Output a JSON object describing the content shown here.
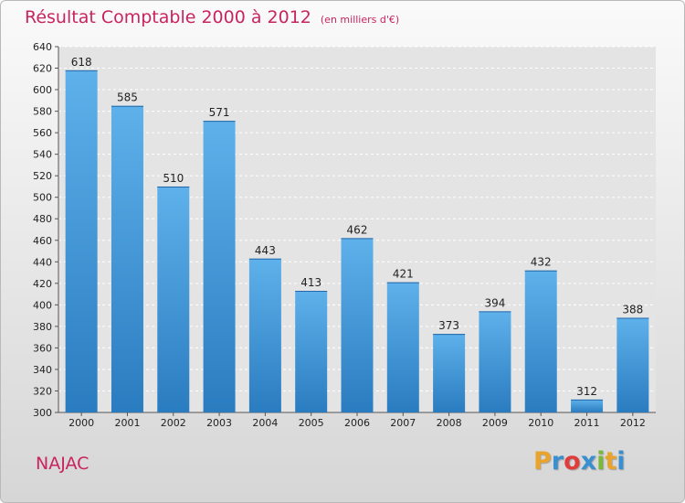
{
  "title": "Résultat Comptable 2000 à 2012",
  "subtitle": "(en milliers d'€)",
  "place": "NAJAC",
  "logo": {
    "letters": [
      "P",
      "r",
      "o",
      "x",
      "i",
      "t",
      "i"
    ],
    "colors": [
      "#e8a42c",
      "#3a8fd0",
      "#e03c3c",
      "#3a8fd0",
      "#7ab83b",
      "#e8a42c",
      "#3a8fd0"
    ]
  },
  "colors": {
    "bar": "#3d95d8",
    "bar_light": "#5eb1ea",
    "bar_dark": "#2a7cc0",
    "title": "#c8245f"
  },
  "chart_data": {
    "type": "bar",
    "categories": [
      "2000",
      "2001",
      "2002",
      "2003",
      "2004",
      "2005",
      "2006",
      "2007",
      "2008",
      "2009",
      "2010",
      "2011",
      "2012"
    ],
    "values": [
      618,
      585,
      510,
      571,
      443,
      413,
      462,
      421,
      373,
      394,
      432,
      312,
      388
    ],
    "ylim": [
      300,
      640
    ],
    "yticks": [
      300,
      320,
      340,
      360,
      380,
      400,
      420,
      440,
      460,
      480,
      500,
      520,
      540,
      560,
      580,
      600,
      620,
      640
    ],
    "grid": true
  }
}
